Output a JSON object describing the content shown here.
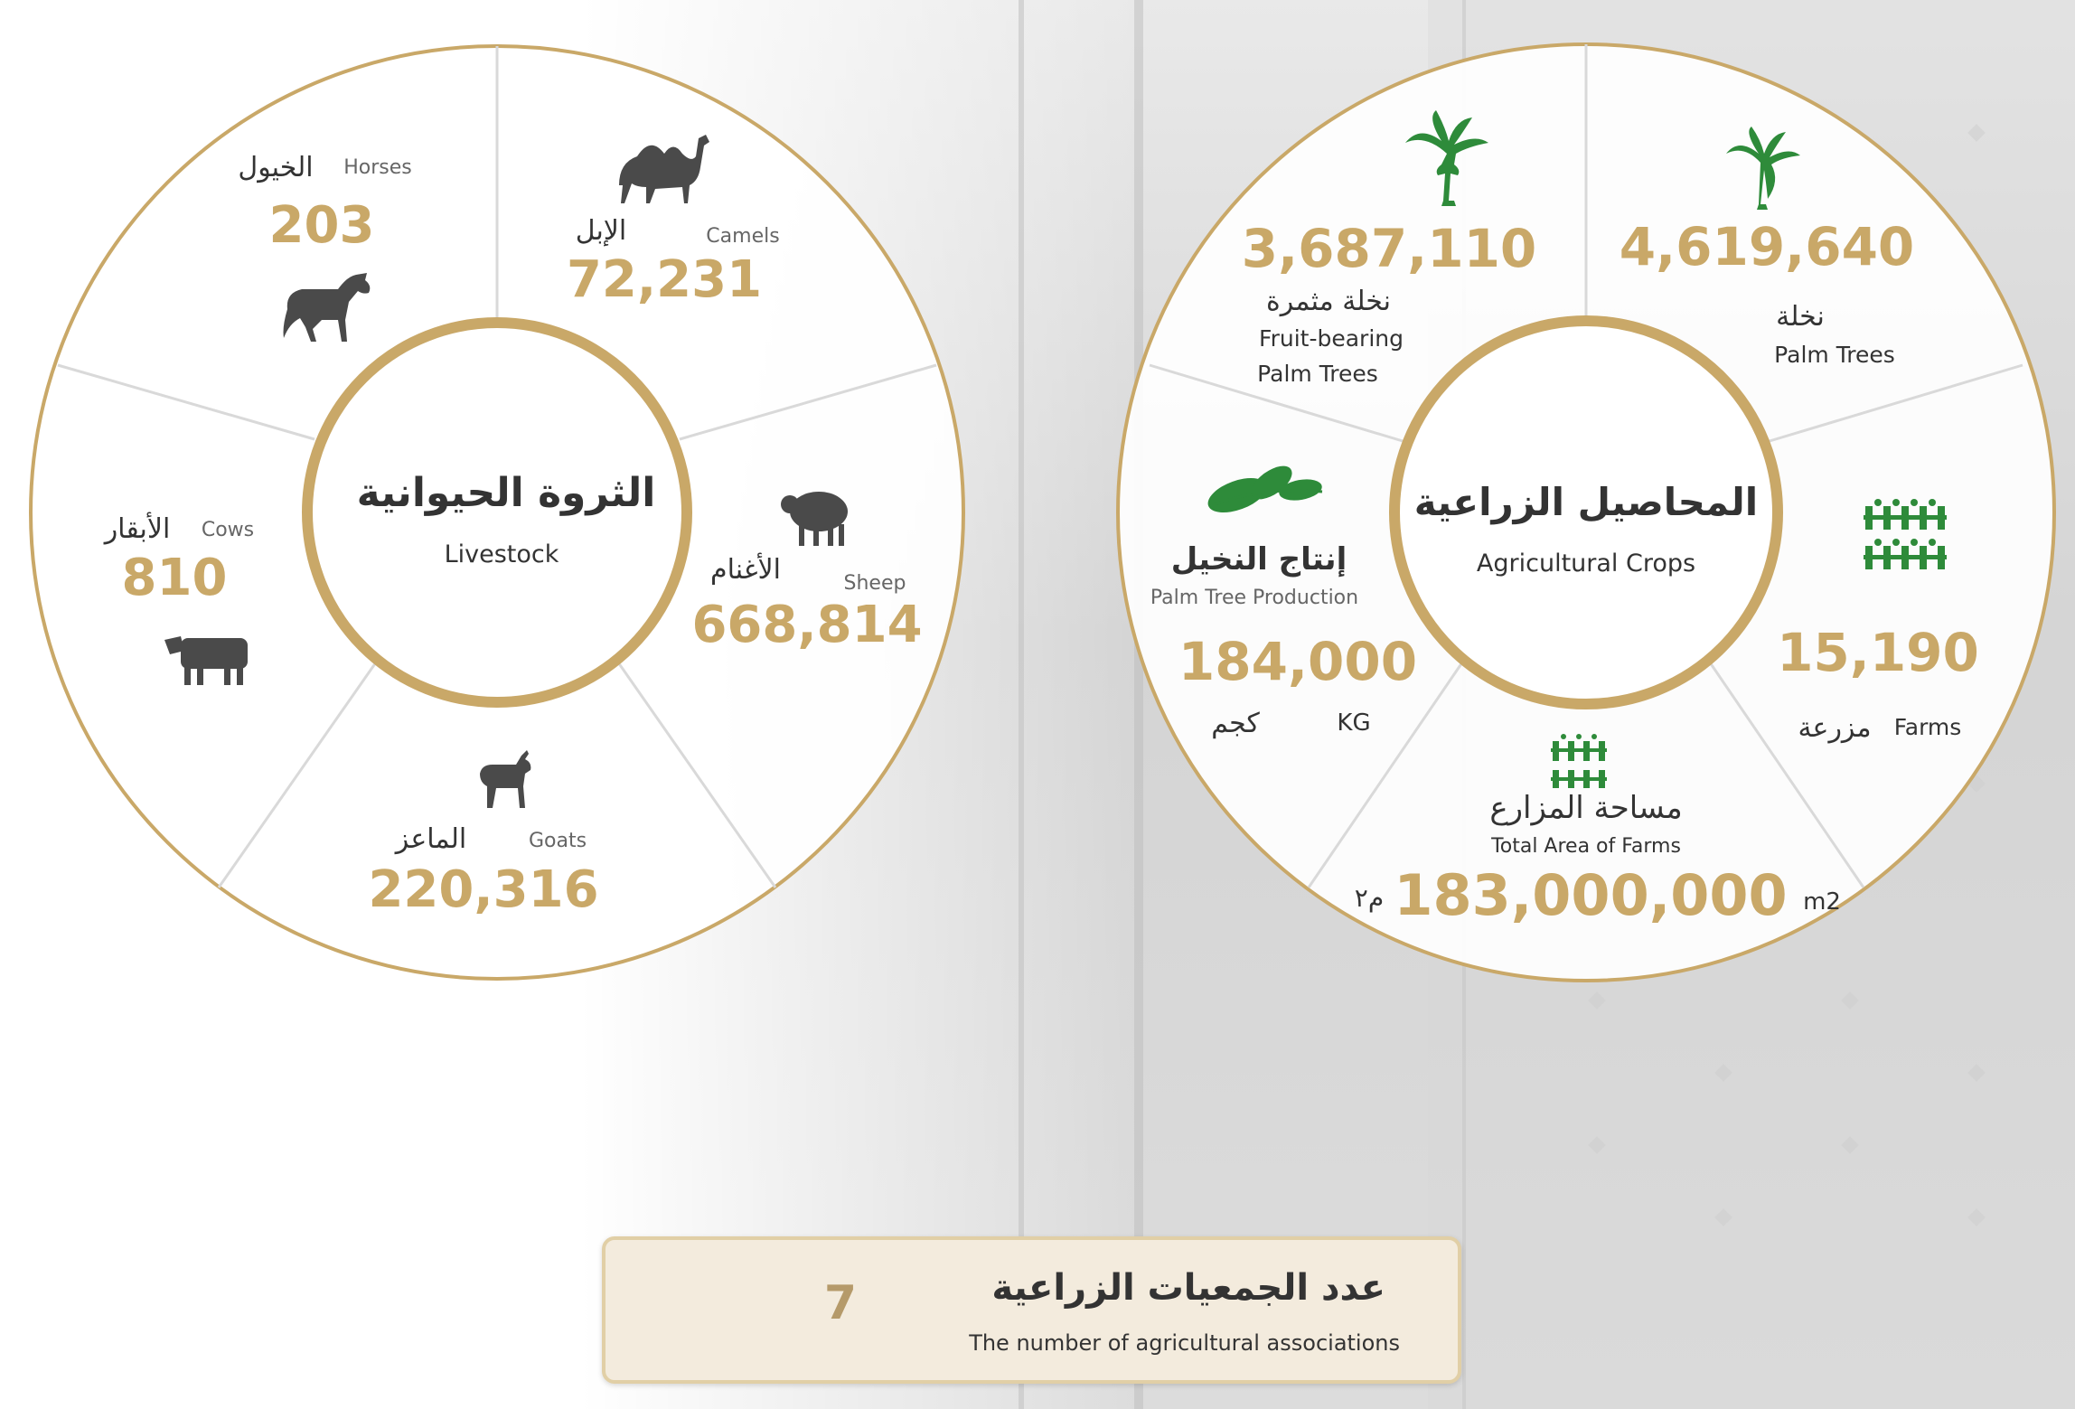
{
  "livestock": {
    "title_ar": "الثروة الحيوانية",
    "title_en": "Livestock",
    "camels": {
      "ar": "الإبل",
      "en": "Camels",
      "value": "72,231",
      "icon": "camel-icon"
    },
    "horses": {
      "ar": "الخيول",
      "en": "Horses",
      "value": "203",
      "icon": "horse-icon"
    },
    "sheep": {
      "ar": "الأغنام",
      "en": "Sheep",
      "value": "668,814",
      "icon": "sheep-icon"
    },
    "cows": {
      "ar": "الأبقار",
      "en": "Cows",
      "value": "810",
      "icon": "cow-icon"
    },
    "goats": {
      "ar": "الماعز",
      "en": "Goats",
      "value": "220,316",
      "icon": "goat-icon"
    }
  },
  "crops": {
    "title_ar": "المحاصيل الزراعية",
    "title_en": "Agricultural Crops",
    "palm_trees": {
      "ar": "نخلة",
      "en": "Palm Trees",
      "value": "4,619,640",
      "icon": "palm-tree-icon"
    },
    "fruit_palms": {
      "ar": "نخلة مثمرة",
      "en1": "Fruit-bearing",
      "en2": "Palm Trees",
      "value": "3,687,110",
      "icon": "fruit-palm-icon"
    },
    "production": {
      "ar": "إنتاج النخيل",
      "en": "Palm Tree Production",
      "value": "184,000",
      "unit_ar": "كجم",
      "unit_en": "KG",
      "icon": "leaves-icon"
    },
    "farms": {
      "ar": "مزرعة",
      "en": "Farms",
      "value": "15,190",
      "icon": "farm-fence-icon"
    },
    "area": {
      "ar": "مساحة المزارع",
      "en": "Total Area of Farms",
      "value": "183,000,000",
      "unit_ar": "م٢",
      "unit_en": "m2",
      "icon": "farm-area-icon"
    }
  },
  "associations": {
    "title_ar": "عدد الجمعيات الزراعية",
    "title_en": "The number of agricultural associations",
    "value": "7"
  },
  "colors": {
    "gold": "#c9a868",
    "green": "#2e8b3a",
    "dark": "#333333"
  }
}
